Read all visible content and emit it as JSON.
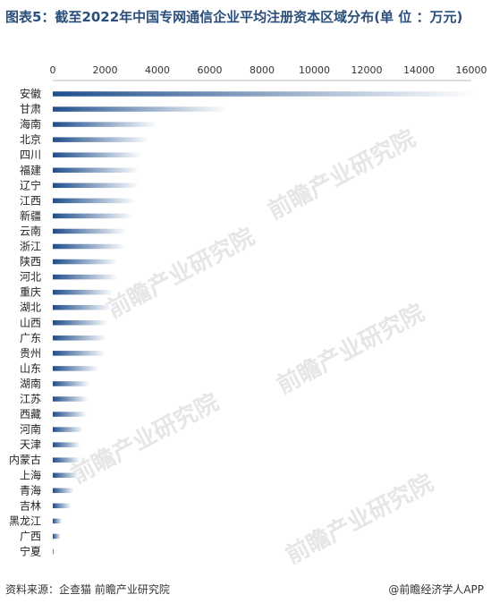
{
  "title": "图表5：截至2022年中国专网通信企业平均注册资本区域分布(单 位 ：万元)",
  "footer": {
    "source": "资料来源：企查猫 前瞻产业研究院",
    "brand": "@前瞻经济学人APP"
  },
  "watermark_text": "前瞻产业研究院",
  "colors": {
    "bar_dark": "#1f4e8c",
    "bar_light": "#ffffff",
    "axis": "#bbbbbb"
  },
  "chart_data": {
    "type": "bar",
    "orientation": "horizontal",
    "title": "图表5：截至2022年中国专网通信企业平均注册资本区域分布(单 位 ：万元)",
    "xlabel": "",
    "ylabel": "",
    "xlim": [
      0,
      16000
    ],
    "xticks": [
      0,
      2000,
      4000,
      6000,
      8000,
      10000,
      12000,
      14000,
      16000
    ],
    "axis_position": "top",
    "grid": false,
    "categories": [
      "安徽",
      "甘肃",
      "海南",
      "北京",
      "四川",
      "福建",
      "辽宁",
      "江西",
      "新疆",
      "云南",
      "浙江",
      "陕西",
      "河北",
      "重庆",
      "湖北",
      "山西",
      "广东",
      "贵州",
      "山东",
      "湖南",
      "江苏",
      "西藏",
      "河南",
      "天津",
      "内蒙古",
      "上海",
      "青海",
      "吉林",
      "黑龙江",
      "广西",
      "宁夏"
    ],
    "values": [
      16200,
      6700,
      4000,
      3700,
      3400,
      3300,
      3300,
      3150,
      3050,
      2800,
      2780,
      2500,
      2480,
      2300,
      2250,
      2100,
      2050,
      2000,
      1750,
      1400,
      1350,
      1300,
      1150,
      1050,
      1050,
      1000,
      800,
      700,
      350,
      300,
      50
    ]
  }
}
